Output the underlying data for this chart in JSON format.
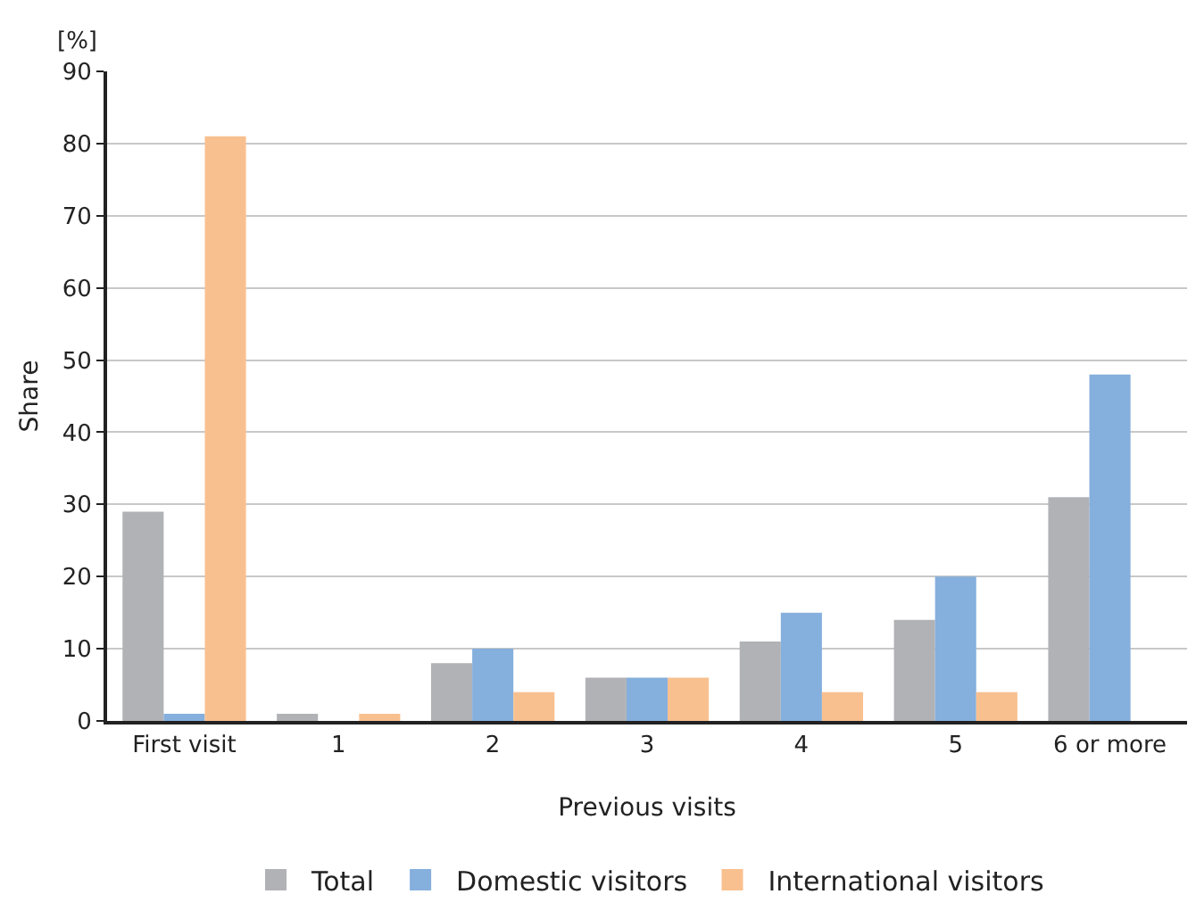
{
  "chart_data": {
    "type": "bar",
    "ylabel": "Share",
    "xlabel": "Previous visits",
    "annotations": [
      "[%]"
    ],
    "categories": [
      "First visit",
      "1",
      "2",
      "3",
      "4",
      "5",
      "6 or more"
    ],
    "series": [
      {
        "name": "Total",
        "color": "#b1b2b6",
        "values": [
          29,
          1,
          8,
          6,
          11,
          14,
          31
        ]
      },
      {
        "name": "Domestic visitors",
        "color": "#85afdc",
        "values": [
          1,
          0,
          10,
          6,
          15,
          20,
          48
        ]
      },
      {
        "name": "International visitors",
        "color": "#f9c08f",
        "values": [
          81,
          1,
          4,
          6,
          4,
          4,
          0
        ]
      }
    ],
    "ylim": [
      0,
      90
    ],
    "yticks": [
      0,
      10,
      20,
      30,
      40,
      50,
      60,
      70,
      80,
      90
    ],
    "grid": "y",
    "legend": "bottom"
  }
}
